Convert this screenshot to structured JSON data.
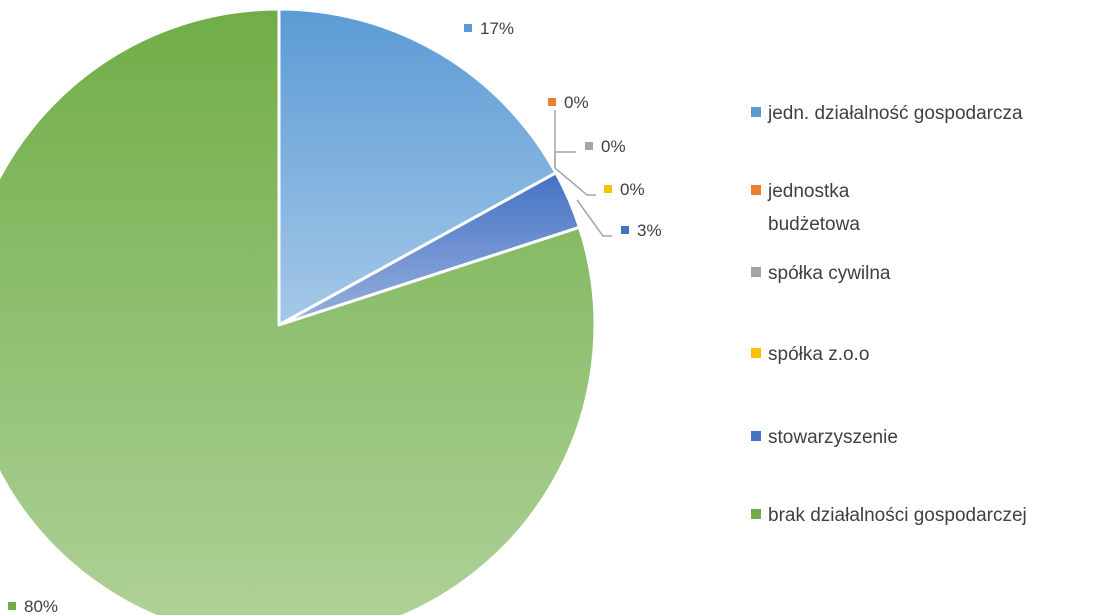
{
  "chart_data": {
    "type": "pie",
    "slices": [
      {
        "label": "jedn. działalność gospodarcza",
        "value": 17,
        "display": "17%",
        "color": "#5B9BD5"
      },
      {
        "label": "jednostka budżetowa",
        "value": 0,
        "display": "0%",
        "color": "#ED7D31"
      },
      {
        "label": "spółka cywilna",
        "value": 0,
        "display": "0%",
        "color": "#A5A5A5"
      },
      {
        "label": "spółka z.o.o",
        "value": 0,
        "display": "0%",
        "color": "#FFC000"
      },
      {
        "label": "stowarzyszenie",
        "value": 3,
        "display": "3%",
        "color": "#4472C4"
      },
      {
        "label": "brak działalności gospodarczej",
        "value": 80,
        "display": "80%",
        "color": "#70AD47"
      }
    ],
    "legend": {
      "position": "right",
      "entries": [
        {
          "lines": [
            "jedn. działalność gospodarcza"
          ],
          "color": "#5B9BD5"
        },
        {
          "lines": [
            "jednostka",
            "budżetowa"
          ],
          "color": "#ED7D31"
        },
        {
          "lines": [
            "spółka cywilna"
          ],
          "color": "#A5A5A5"
        },
        {
          "lines": [
            "spółka z.o.o"
          ],
          "color": "#FFC000"
        },
        {
          "lines": [
            "stowarzyszenie"
          ],
          "color": "#4472C4"
        },
        {
          "lines": [
            "brak działalności gospodarczej"
          ],
          "color": "#70AD47"
        }
      ]
    }
  }
}
